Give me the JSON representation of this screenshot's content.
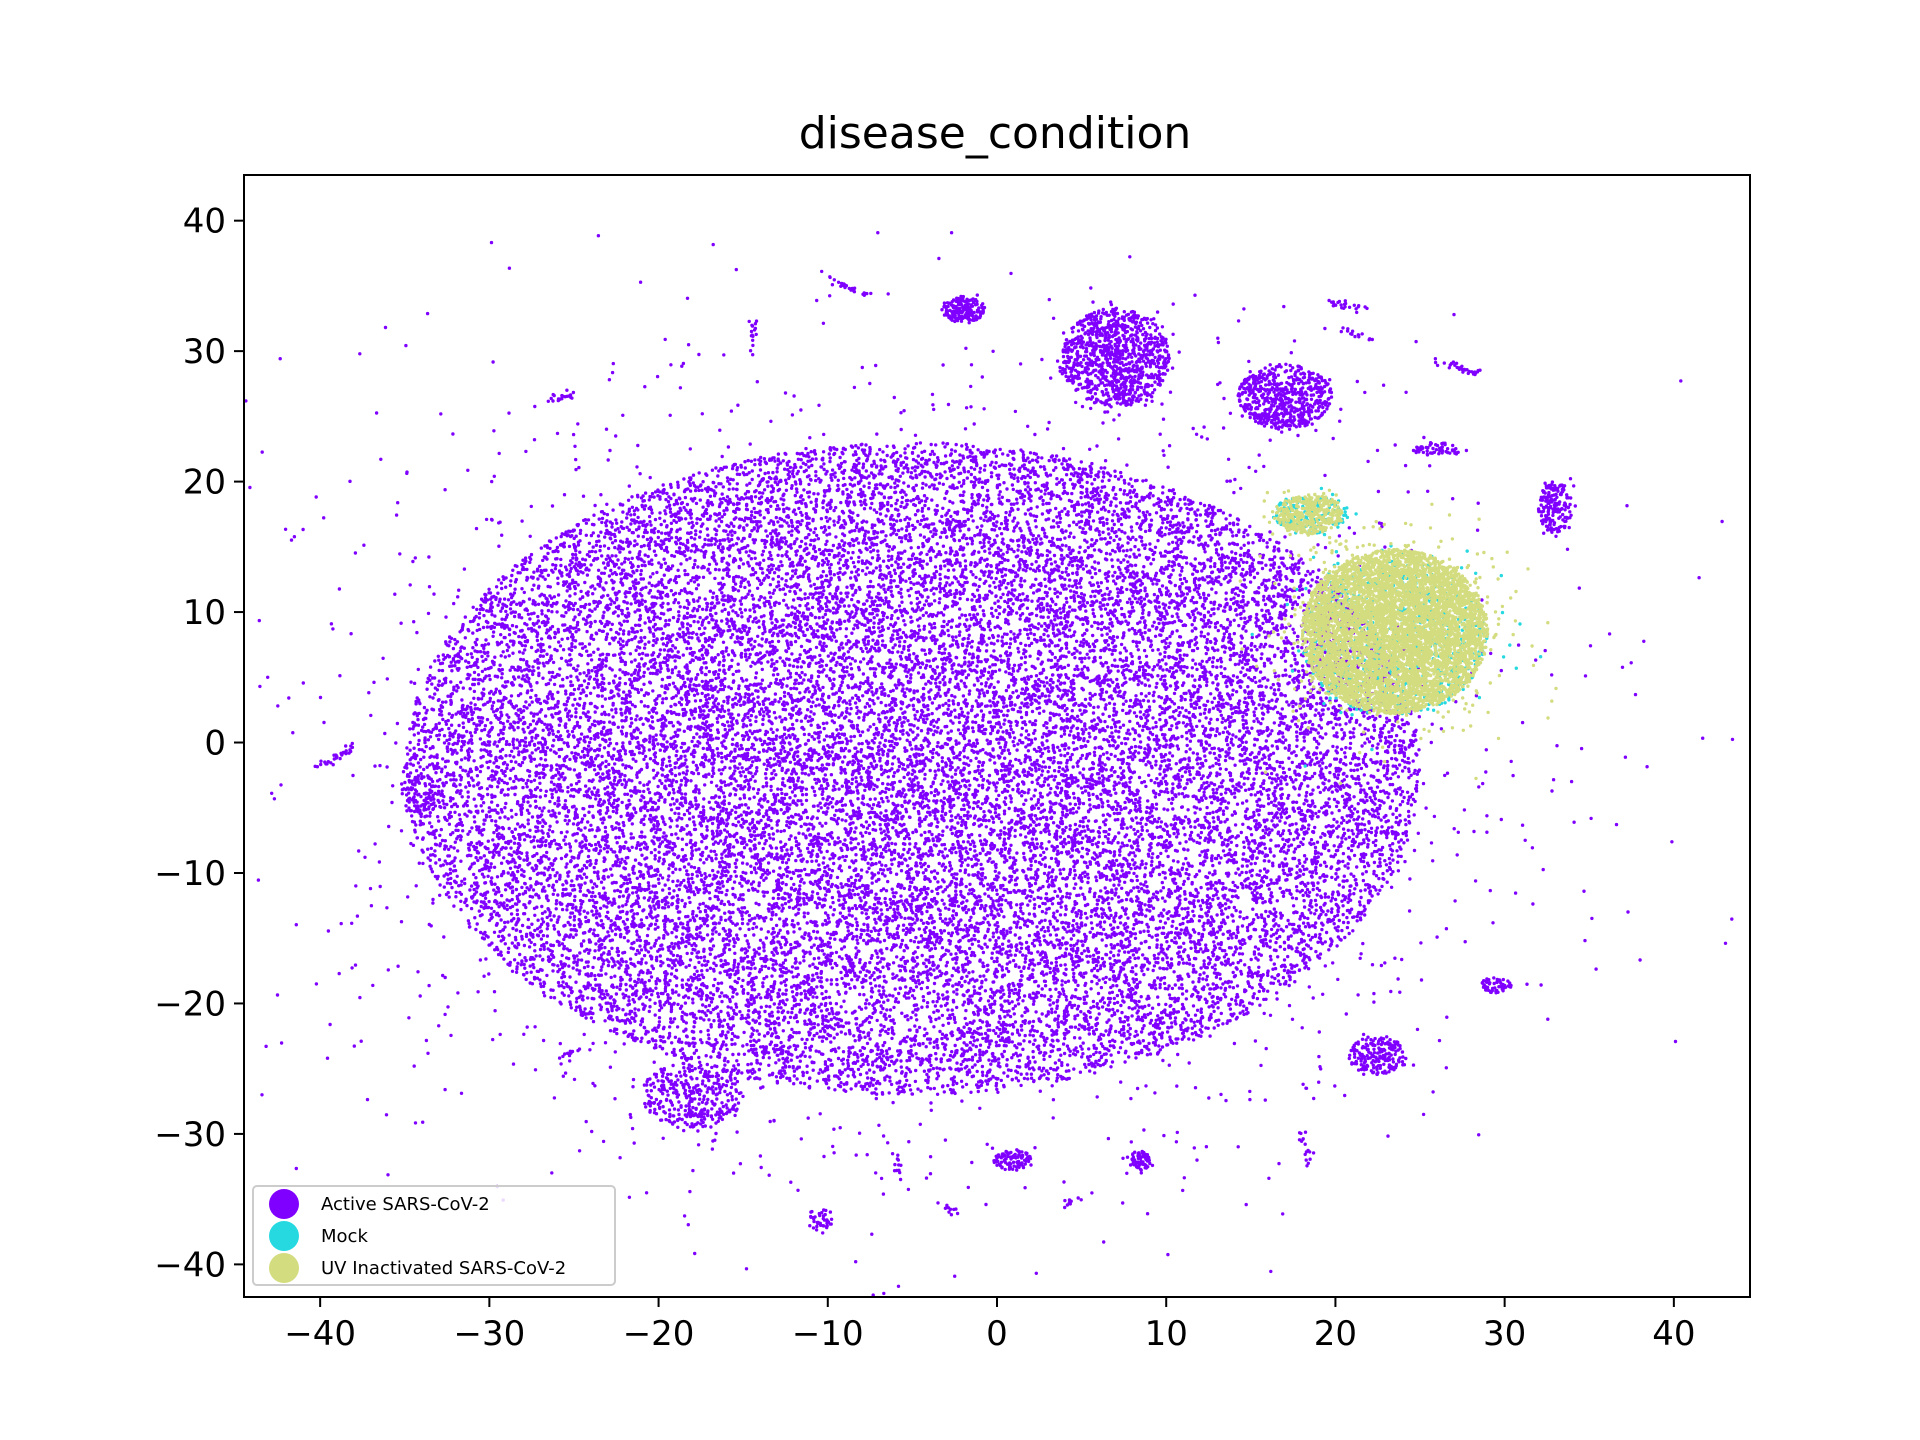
{
  "chart_data": {
    "type": "scatter",
    "title": "disease_condition",
    "xlabel": "",
    "ylabel": "",
    "xlim": [
      -44.5,
      44.5
    ],
    "ylim": [
      -42.5,
      43.5
    ],
    "xticks": [
      -40,
      -30,
      -20,
      -10,
      0,
      10,
      20,
      30,
      40
    ],
    "yticks": [
      -40,
      -30,
      -20,
      -10,
      0,
      10,
      20,
      30,
      40
    ],
    "xtick_labels": [
      "−40",
      "−30",
      "−20",
      "−10",
      "0",
      "10",
      "20",
      "30",
      "40"
    ],
    "ytick_labels": [
      "−40",
      "−30",
      "−20",
      "−10",
      "0",
      "10",
      "20",
      "30",
      "40"
    ],
    "grid": false,
    "legend_position": "lower-left",
    "series": [
      {
        "name": "Active SARS-CoV-2",
        "color": "#8000ff",
        "clusters": [
          {
            "cx": -5,
            "cy": -2,
            "rx": 30,
            "ry": 25,
            "n": 26000
          },
          {
            "cx": 7,
            "cy": 29.5,
            "rx": 3.2,
            "ry": 3.8,
            "n": 1000
          },
          {
            "cx": 17,
            "cy": 26.5,
            "rx": 2.8,
            "ry": 2.5,
            "n": 600
          },
          {
            "cx": -2,
            "cy": 33.2,
            "rx": 1.3,
            "ry": 1.0,
            "n": 180
          },
          {
            "cx": 33,
            "cy": 18,
            "rx": 1.0,
            "ry": 2.0,
            "n": 180
          },
          {
            "cx": -18,
            "cy": -27,
            "rx": 3.0,
            "ry": 2.5,
            "n": 350
          },
          {
            "cx": 22.5,
            "cy": -24,
            "rx": 1.7,
            "ry": 1.5,
            "n": 200
          },
          {
            "cx": 29.5,
            "cy": -18.6,
            "rx": 0.9,
            "ry": 0.6,
            "n": 60
          },
          {
            "cx": 1,
            "cy": -32,
            "rx": 1.2,
            "ry": 0.8,
            "n": 100
          },
          {
            "cx": 8.5,
            "cy": -32,
            "rx": 0.6,
            "ry": 0.8,
            "n": 70
          },
          {
            "cx": -34,
            "cy": -4,
            "rx": 1.2,
            "ry": 1.5,
            "n": 90
          },
          {
            "cx": 26,
            "cy": 22.5,
            "rx": 1.5,
            "ry": 0.5,
            "n": 60
          },
          {
            "cx": -10.5,
            "cy": -36.5,
            "rx": 0.8,
            "ry": 0.9,
            "n": 40
          }
        ],
        "arcs": [
          {
            "x": [
              -38,
              -40
            ],
            "y": [
              -0.3,
              -1.9
            ],
            "n": 30
          },
          {
            "x": [
              -25,
              -26.5
            ],
            "y": [
              26.8,
              26.2
            ],
            "n": 20
          },
          {
            "x": [
              -10,
              -7.5
            ],
            "y": [
              35.5,
              34.2
            ],
            "n": 25
          },
          {
            "x": [
              -14.5,
              -14.5
            ],
            "y": [
              32.5,
              30
            ],
            "n": 15
          },
          {
            "x": [
              19.5,
              22
            ],
            "y": [
              33.7,
              33.2
            ],
            "n": 25
          },
          {
            "x": [
              26,
              28.5
            ],
            "y": [
              29.3,
              28.3
            ],
            "n": 30
          },
          {
            "x": [
              20.5,
              22.5
            ],
            "y": [
              31.6,
              30.8
            ],
            "n": 15
          },
          {
            "x": [
              -24.5,
              -26
            ],
            "y": [
              -23.3,
              -24.5
            ],
            "n": 12
          },
          {
            "x": [
              18,
              18.5
            ],
            "y": [
              -30,
              -32.5
            ],
            "n": 15
          },
          {
            "x": [
              -6,
              -5.8
            ],
            "y": [
              -31.5,
              -33.5
            ],
            "n": 12
          },
          {
            "x": [
              4,
              4.8
            ],
            "y": [
              -35.5,
              -34.8
            ],
            "n": 10
          },
          {
            "x": [
              -3,
              -2.5
            ],
            "y": [
              -35.5,
              -36
            ],
            "n": 10
          }
        ],
        "size": 1.7
      },
      {
        "name": "Mock",
        "color": "#26d9e0",
        "clusters": [
          {
            "cx": 23.5,
            "cy": 8,
            "rx": 5.5,
            "ry": 6,
            "n": 800
          },
          {
            "cx": 18.5,
            "cy": 17.5,
            "rx": 2.3,
            "ry": 1.5,
            "n": 150
          }
        ],
        "size": 1.7
      },
      {
        "name": "UV Inactivated SARS-CoV-2",
        "color": "#d4dc80",
        "clusters": [
          {
            "cx": 23.5,
            "cy": 8.5,
            "rx": 5.5,
            "ry": 6.3,
            "n": 6000
          },
          {
            "cx": 18.5,
            "cy": 17.5,
            "rx": 2.0,
            "ry": 1.5,
            "n": 400
          }
        ],
        "size": 1.7
      }
    ]
  }
}
